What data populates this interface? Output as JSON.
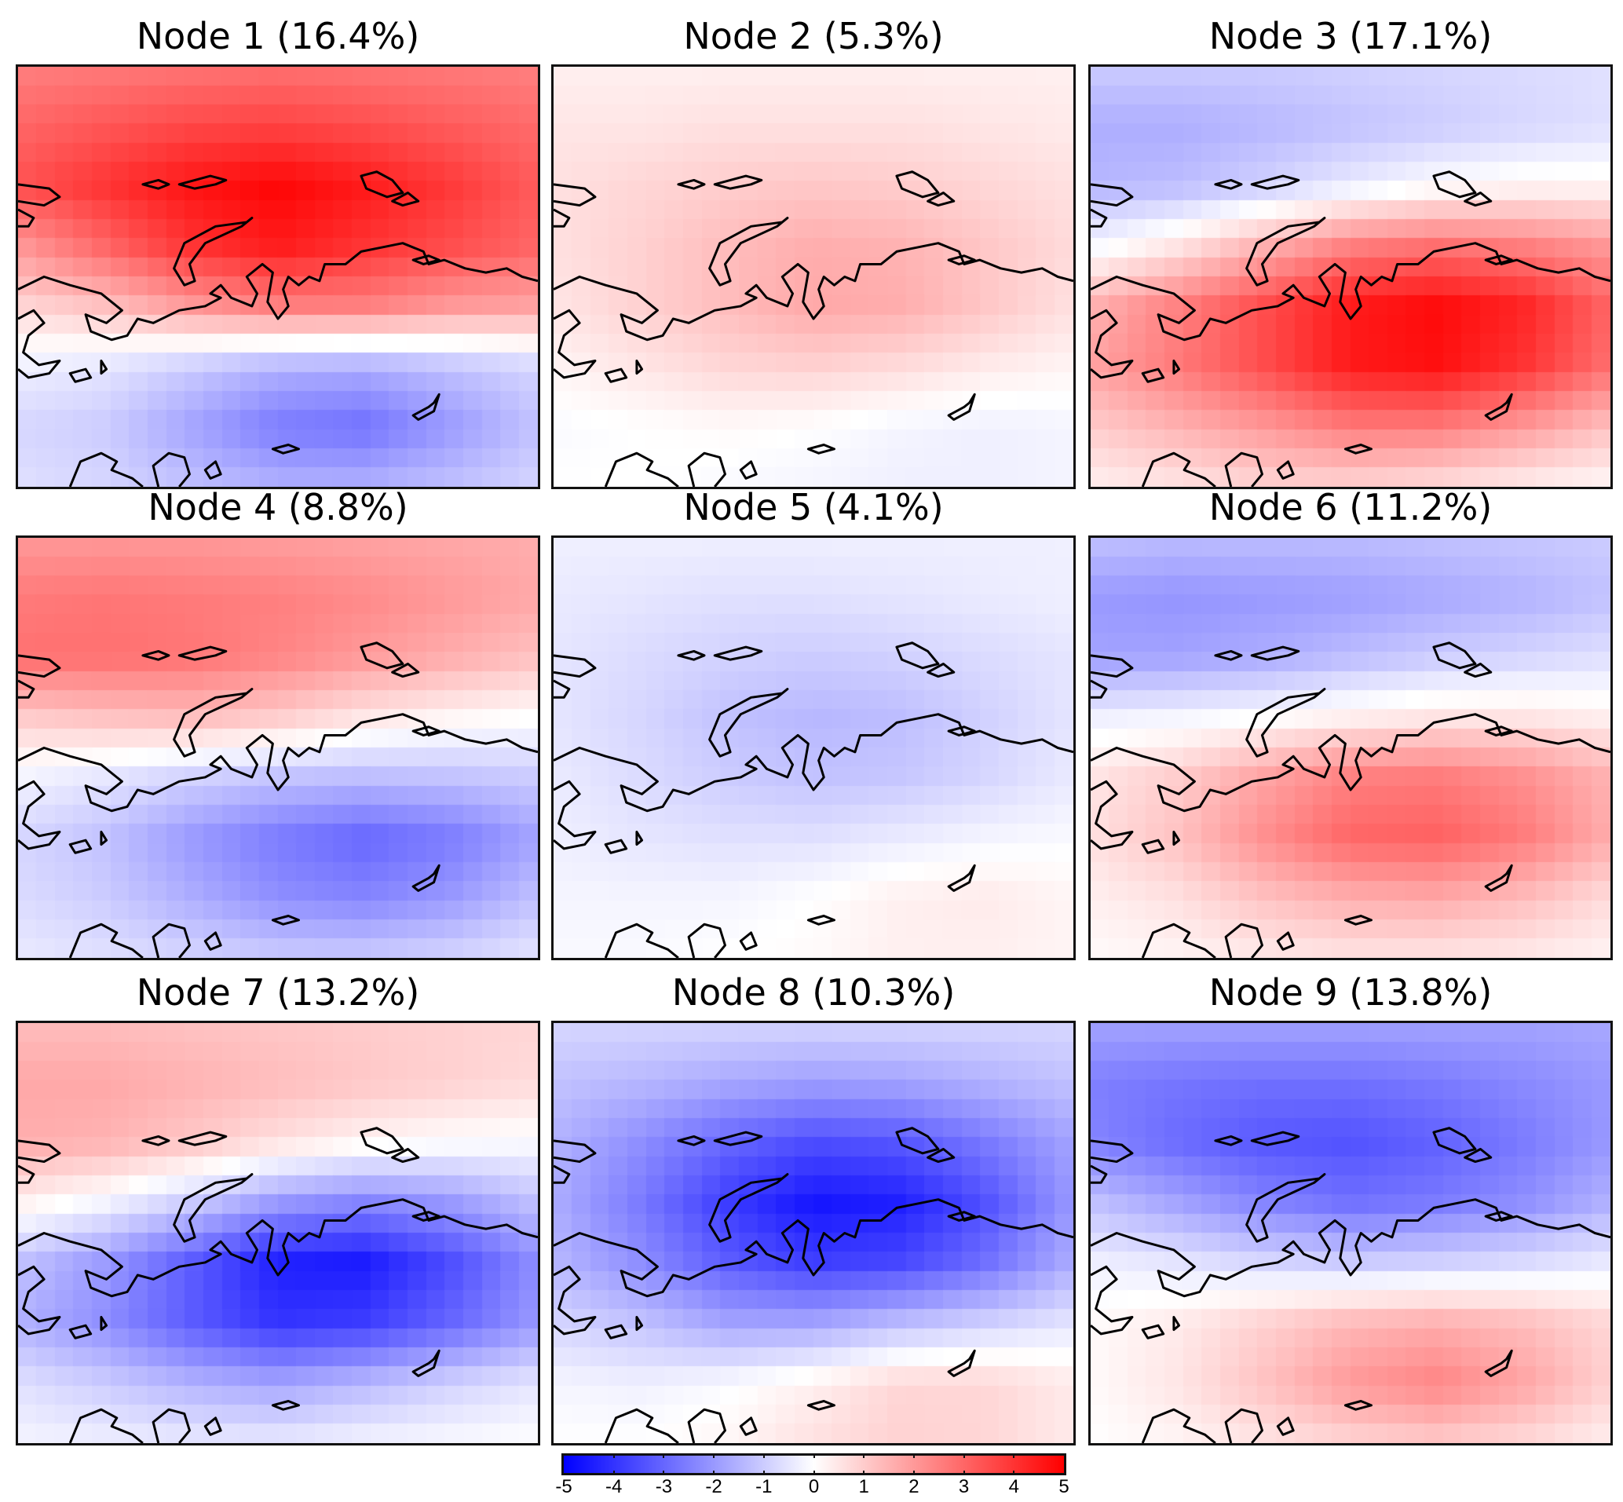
{
  "chart_data": {
    "type": "heatmap",
    "layout": "3x3 grid of map panels",
    "colorbar": {
      "min": -5,
      "max": 5,
      "ticks": [
        "-5",
        "-4",
        "-3",
        "-2",
        "-1",
        "0",
        "1",
        "2",
        "3",
        "4",
        "5"
      ],
      "colors": {
        "min": "#0000ff",
        "mid": "#ffffff",
        "max": "#ff0000"
      },
      "placement": "bottom-center"
    },
    "panels": [
      {
        "title": "Node 1 (16.4%)",
        "grid": [
          [
            2.5,
            2.6,
            2.7,
            2.8,
            2.7,
            2.6,
            2.5
          ],
          [
            3.0,
            3.3,
            3.6,
            3.7,
            3.5,
            3.2,
            2.9
          ],
          [
            3.4,
            4.0,
            4.6,
            4.9,
            4.5,
            3.9,
            3.2
          ],
          [
            2.0,
            3.0,
            4.0,
            4.5,
            4.0,
            3.5,
            3.0
          ],
          [
            0.8,
            1.2,
            2.0,
            2.5,
            2.5,
            2.0,
            1.8
          ],
          [
            -0.3,
            -0.5,
            -1.0,
            -1.5,
            -1.6,
            -1.2,
            -0.8
          ],
          [
            -0.8,
            -1.0,
            -1.8,
            -2.6,
            -2.8,
            -2.0,
            -1.2
          ],
          [
            -0.6,
            -0.8,
            -1.2,
            -1.5,
            -1.5,
            -1.2,
            -0.8
          ]
        ]
      },
      {
        "title": "Node 2 (5.3%)",
        "grid": [
          [
            0.3,
            0.3,
            0.3,
            0.3,
            0.3,
            0.3,
            0.3
          ],
          [
            0.5,
            0.5,
            0.6,
            0.6,
            0.6,
            0.5,
            0.4
          ],
          [
            0.6,
            0.8,
            1.0,
            1.1,
            1.0,
            0.8,
            0.6
          ],
          [
            0.6,
            0.9,
            1.3,
            1.6,
            1.5,
            1.1,
            0.7
          ],
          [
            0.5,
            0.9,
            1.3,
            1.7,
            1.6,
            1.1,
            0.6
          ],
          [
            0.2,
            0.5,
            0.8,
            0.9,
            0.7,
            0.4,
            0.2
          ],
          [
            -0.1,
            0.0,
            0.1,
            0.0,
            -0.2,
            -0.3,
            -0.2
          ],
          [
            0.0,
            0.0,
            -0.1,
            -0.2,
            -0.3,
            -0.3,
            -0.2
          ]
        ]
      },
      {
        "title": "Node 3 (17.1%)",
        "grid": [
          [
            -1.0,
            -1.0,
            -1.0,
            -0.9,
            -0.8,
            -0.7,
            -0.6
          ],
          [
            -1.6,
            -1.6,
            -1.4,
            -1.2,
            -1.0,
            -0.8,
            -0.6
          ],
          [
            -1.4,
            -1.3,
            -0.9,
            -0.4,
            0.0,
            0.2,
            0.2
          ],
          [
            -0.2,
            0.5,
            1.5,
            2.5,
            2.8,
            2.5,
            2.0
          ],
          [
            1.5,
            2.5,
            3.5,
            4.5,
            4.8,
            4.3,
            3.0
          ],
          [
            1.8,
            2.6,
            3.5,
            4.5,
            4.7,
            4.0,
            2.8
          ],
          [
            1.0,
            1.5,
            2.0,
            2.6,
            2.6,
            2.0,
            1.2
          ],
          [
            0.3,
            0.5,
            0.8,
            0.8,
            0.6,
            0.3,
            0.1
          ]
        ]
      },
      {
        "title": "Node 4 (8.8%)",
        "grid": [
          [
            2.0,
            2.0,
            2.0,
            1.9,
            1.8,
            1.7,
            1.6
          ],
          [
            2.6,
            2.7,
            2.6,
            2.5,
            2.3,
            2.0,
            1.7
          ],
          [
            2.8,
            2.8,
            2.7,
            2.4,
            2.0,
            1.6,
            1.2
          ],
          [
            1.0,
            1.2,
            1.3,
            1.0,
            0.5,
            0.2,
            0.0
          ],
          [
            -0.2,
            -0.5,
            -0.9,
            -1.2,
            -1.3,
            -1.2,
            -1.0
          ],
          [
            -0.8,
            -1.2,
            -2.0,
            -2.6,
            -3.0,
            -2.6,
            -1.8
          ],
          [
            -0.7,
            -1.0,
            -1.6,
            -2.2,
            -2.4,
            -2.0,
            -1.2
          ],
          [
            -0.4,
            -0.6,
            -0.8,
            -1.0,
            -1.0,
            -0.8,
            -0.5
          ]
        ]
      },
      {
        "title": "Node 5 (4.1%)",
        "grid": [
          [
            -0.3,
            -0.3,
            -0.3,
            -0.3,
            -0.3,
            -0.3,
            -0.3
          ],
          [
            -0.4,
            -0.5,
            -0.6,
            -0.6,
            -0.5,
            -0.4,
            -0.3
          ],
          [
            -0.5,
            -0.7,
            -0.9,
            -1.0,
            -0.9,
            -0.7,
            -0.5
          ],
          [
            -0.5,
            -0.8,
            -1.2,
            -1.4,
            -1.3,
            -0.9,
            -0.5
          ],
          [
            -0.4,
            -0.7,
            -1.0,
            -1.2,
            -1.1,
            -0.8,
            -0.4
          ],
          [
            -0.3,
            -0.5,
            -0.6,
            -0.6,
            -0.4,
            -0.2,
            -0.1
          ],
          [
            -0.2,
            -0.2,
            -0.2,
            0.0,
            0.3,
            0.4,
            0.2
          ],
          [
            -0.1,
            -0.1,
            0.0,
            0.1,
            0.3,
            0.3,
            0.2
          ]
        ]
      },
      {
        "title": "Node 6 (11.2%)",
        "grid": [
          [
            -1.2,
            -1.3,
            -1.3,
            -1.3,
            -1.2,
            -1.1,
            -1.0
          ],
          [
            -2.0,
            -2.1,
            -2.0,
            -1.9,
            -1.7,
            -1.5,
            -1.2
          ],
          [
            -1.8,
            -1.8,
            -1.6,
            -1.3,
            -1.0,
            -0.8,
            -0.6
          ],
          [
            -0.3,
            -0.2,
            0.0,
            0.3,
            0.5,
            0.5,
            0.3
          ],
          [
            0.5,
            1.0,
            1.8,
            2.5,
            2.6,
            2.2,
            1.5
          ],
          [
            0.6,
            1.2,
            2.2,
            3.0,
            3.1,
            2.6,
            1.6
          ],
          [
            0.3,
            0.6,
            1.2,
            1.6,
            1.7,
            1.3,
            0.7
          ],
          [
            0.1,
            0.2,
            0.4,
            0.5,
            0.5,
            0.4,
            0.2
          ]
        ]
      },
      {
        "title": "Node 7 (13.2%)",
        "grid": [
          [
            1.3,
            1.3,
            1.2,
            1.1,
            1.0,
            0.9,
            0.8
          ],
          [
            1.7,
            1.7,
            1.5,
            1.3,
            1.1,
            0.9,
            0.7
          ],
          [
            1.6,
            1.5,
            1.1,
            0.6,
            0.2,
            0.0,
            -0.1
          ],
          [
            0.3,
            -0.2,
            -1.0,
            -2.0,
            -2.4,
            -2.0,
            -1.2
          ],
          [
            -1.2,
            -2.0,
            -3.2,
            -4.4,
            -4.5,
            -3.5,
            -2.2
          ],
          [
            -1.5,
            -2.2,
            -3.2,
            -4.0,
            -3.8,
            -3.0,
            -2.0
          ],
          [
            -0.6,
            -1.0,
            -1.5,
            -1.8,
            -1.4,
            -0.9,
            -0.5
          ],
          [
            -0.2,
            -0.3,
            -0.4,
            -0.4,
            -0.2,
            -0.1,
            0.0
          ]
        ]
      },
      {
        "title": "Node 8 (10.3%)",
        "grid": [
          [
            -0.8,
            -0.8,
            -0.8,
            -0.8,
            -0.8,
            -0.8,
            -0.8
          ],
          [
            -1.2,
            -1.4,
            -1.7,
            -1.9,
            -1.8,
            -1.5,
            -1.2
          ],
          [
            -1.5,
            -2.2,
            -3.0,
            -3.5,
            -3.3,
            -2.6,
            -1.8
          ],
          [
            -1.6,
            -2.6,
            -3.8,
            -4.6,
            -4.4,
            -3.4,
            -2.0
          ],
          [
            -1.4,
            -2.2,
            -3.2,
            -3.8,
            -3.6,
            -2.8,
            -1.6
          ],
          [
            -0.8,
            -1.2,
            -1.8,
            -1.8,
            -1.3,
            -0.9,
            -0.5
          ],
          [
            -0.2,
            -0.3,
            -0.1,
            0.3,
            0.8,
            0.8,
            0.4
          ],
          [
            0.0,
            0.0,
            0.2,
            0.6,
            0.9,
            0.8,
            0.4
          ]
        ]
      },
      {
        "title": "Node 9 (13.8%)",
        "grid": [
          [
            -1.8,
            -1.8,
            -1.8,
            -1.8,
            -1.8,
            -1.8,
            -1.7
          ],
          [
            -2.5,
            -2.7,
            -2.8,
            -2.8,
            -2.6,
            -2.3,
            -2.0
          ],
          [
            -2.4,
            -2.9,
            -3.3,
            -3.4,
            -3.1,
            -2.6,
            -2.0
          ],
          [
            -1.2,
            -1.8,
            -2.4,
            -2.8,
            -2.6,
            -2.2,
            -1.5
          ],
          [
            -0.3,
            -0.5,
            -0.8,
            -1.0,
            -0.9,
            -0.7,
            -0.4
          ],
          [
            0.1,
            0.4,
            0.9,
            1.4,
            1.6,
            1.3,
            0.8
          ],
          [
            0.1,
            0.5,
            1.2,
            2.0,
            2.4,
            1.8,
            0.9
          ],
          [
            0.0,
            0.2,
            0.5,
            0.8,
            1.0,
            0.7,
            0.3
          ]
        ]
      }
    ]
  }
}
